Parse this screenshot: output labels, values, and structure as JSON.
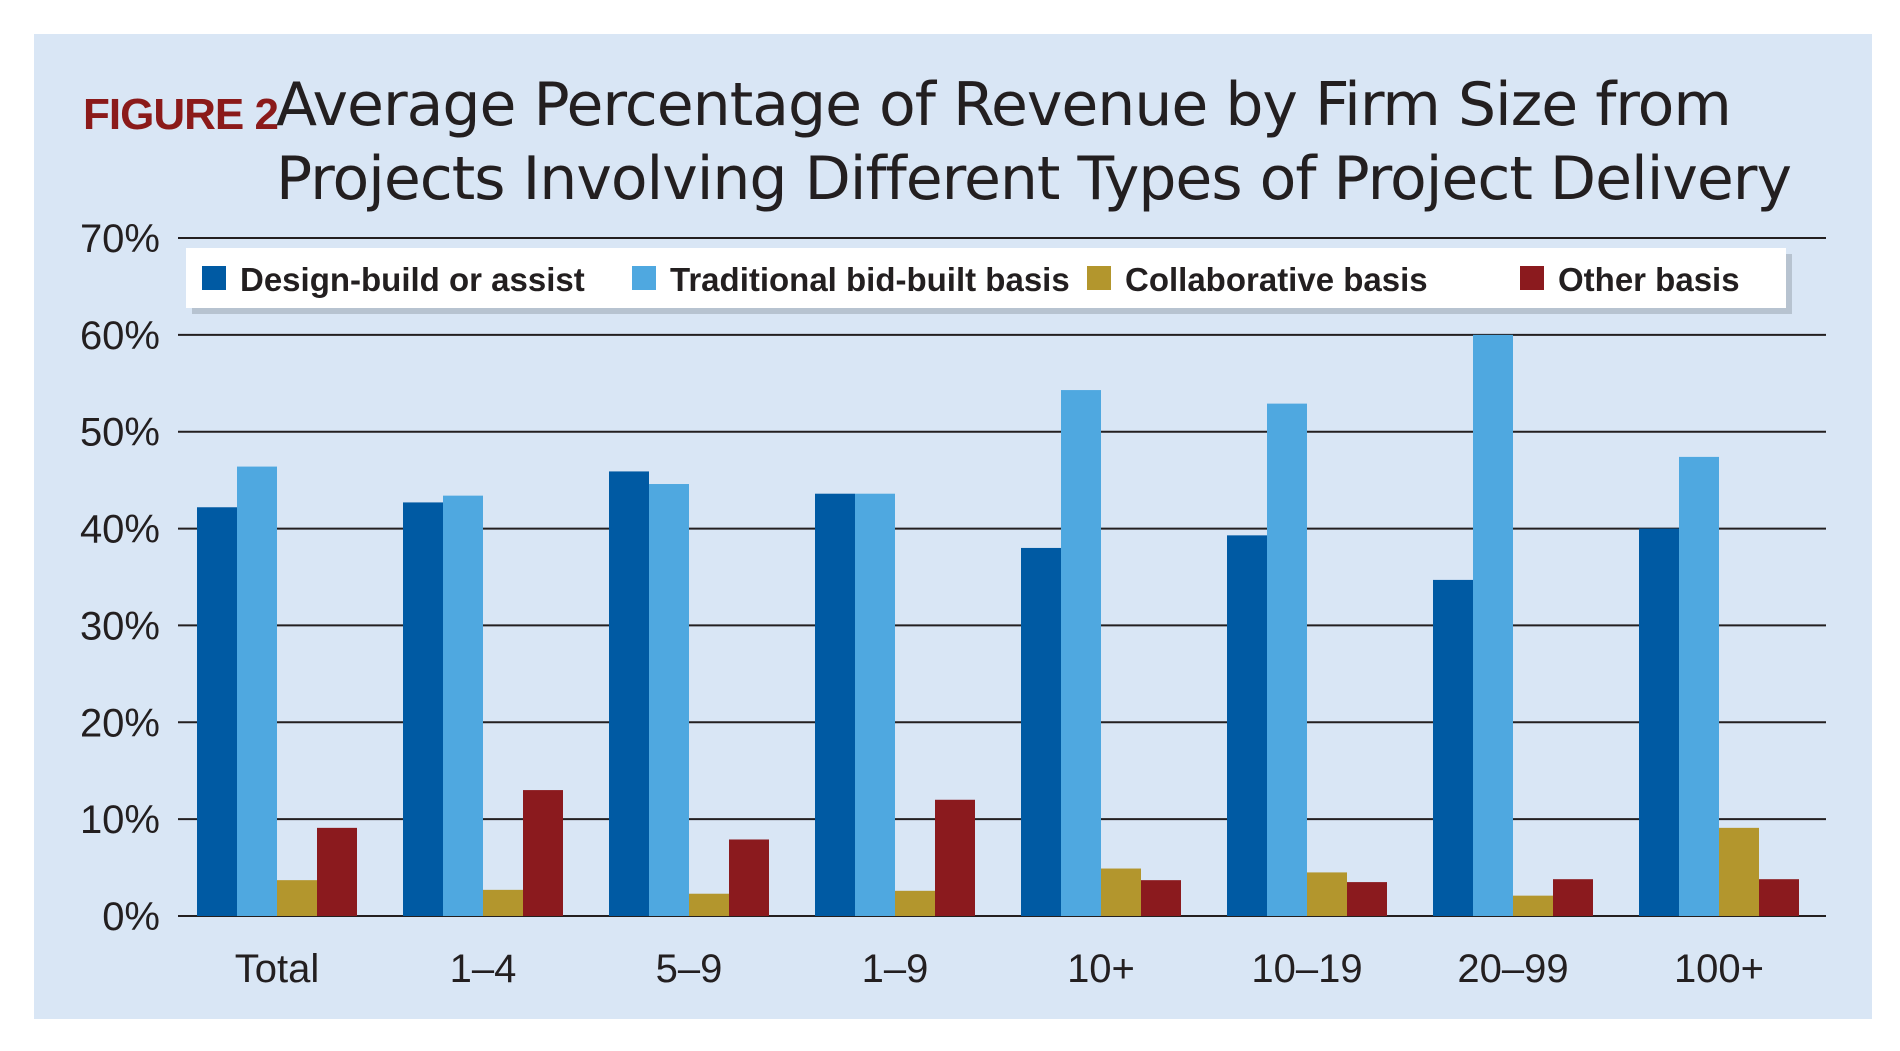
{
  "figure": {
    "label": "FIGURE 2",
    "title_line1": "Average Percentage of Revenue by Firm Size from",
    "title_line2": "Projects Involving Different Types of Project Delivery"
  },
  "colors": {
    "panel_bg": "#d9e6f5",
    "label_red": "#8b1a1a"
  },
  "chart_data": {
    "type": "bar",
    "title": "Average Percentage of Revenue by Firm Size from Projects Involving Different Types of Project Delivery",
    "xlabel": "",
    "ylabel": "",
    "ylim": [
      0,
      70
    ],
    "yticks": [
      "0%",
      "10%",
      "20%",
      "30%",
      "40%",
      "50%",
      "60%",
      "70%"
    ],
    "grid": true,
    "legend_position": "top",
    "categories": [
      "Total",
      "1–4",
      "5–9",
      "1–9",
      "10+",
      "10–19",
      "20–99",
      "100+"
    ],
    "series": [
      {
        "name": "Design-build or assist",
        "color": "#005aa3",
        "values": [
          42.2,
          42.7,
          45.9,
          43.6,
          38.0,
          39.3,
          34.7,
          40.0
        ]
      },
      {
        "name": "Traditional bid-built basis",
        "color": "#4fa8e0",
        "values": [
          46.4,
          43.4,
          44.6,
          43.6,
          54.3,
          52.9,
          60.0,
          47.4
        ]
      },
      {
        "name": "Collaborative basis",
        "color": "#b3962d",
        "values": [
          3.7,
          2.7,
          2.3,
          2.6,
          4.9,
          4.5,
          2.1,
          9.1
        ]
      },
      {
        "name": "Other basis",
        "color": "#8b1a1e",
        "values": [
          9.1,
          13.0,
          7.9,
          12.0,
          3.7,
          3.5,
          3.8,
          3.8
        ]
      }
    ]
  }
}
